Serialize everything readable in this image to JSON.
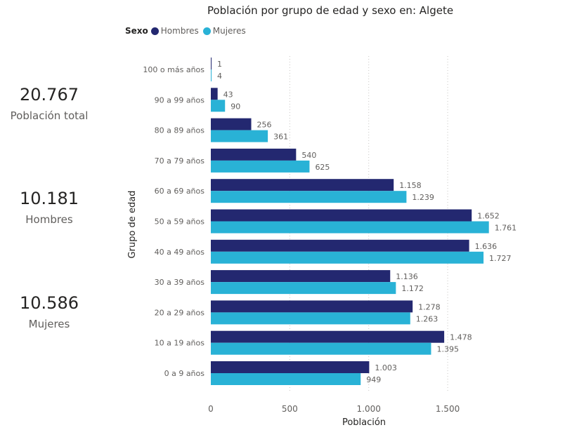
{
  "kpis": {
    "total": {
      "value": "20.767",
      "label": "Población total"
    },
    "hombres": {
      "value": "10.181",
      "label": "Hombres"
    },
    "mujeres": {
      "value": "10.586",
      "label": "Mujeres"
    }
  },
  "legend": {
    "title": "Sexo",
    "items": [
      {
        "name": "Hombres",
        "color": "#232870"
      },
      {
        "name": "Mujeres",
        "color": "#29B2D6"
      }
    ]
  },
  "chart_data": {
    "type": "bar",
    "orientation": "horizontal",
    "title": "Población por grupo de edad y sexo en: Algete",
    "xlabel": "Población",
    "ylabel": "Grupo de edad",
    "xlim": [
      0,
      1900
    ],
    "xticks": [
      0,
      500,
      1000,
      1500
    ],
    "xtick_labels": [
      "0",
      "500",
      "1.000",
      "1.500"
    ],
    "grid": "vertical-dotted",
    "legend_position": "top-left",
    "categories": [
      "100 o más años",
      "90 a 99 años",
      "80 a 89 años",
      "70 a 79 años",
      "60 a 69 años",
      "50 a 59 años",
      "40 a 49 años",
      "30 a 39 años",
      "20 a 29 años",
      "10 a 19 años",
      "0 a 9 años"
    ],
    "series": [
      {
        "name": "Hombres",
        "color": "#232870",
        "values": [
          1,
          43,
          256,
          540,
          1158,
          1652,
          1636,
          1136,
          1278,
          1478,
          1003
        ],
        "labels": [
          "1",
          "43",
          "256",
          "540",
          "1.158",
          "1.652",
          "1.636",
          "1.136",
          "1.278",
          "1.478",
          "1.003"
        ]
      },
      {
        "name": "Mujeres",
        "color": "#29B2D6",
        "values": [
          4,
          90,
          361,
          625,
          1239,
          1761,
          1727,
          1172,
          1263,
          1395,
          949
        ],
        "labels": [
          "4",
          "90",
          "361",
          "625",
          "1.239",
          "1.761",
          "1.727",
          "1.172",
          "1.263",
          "1.395",
          "949"
        ]
      }
    ]
  }
}
